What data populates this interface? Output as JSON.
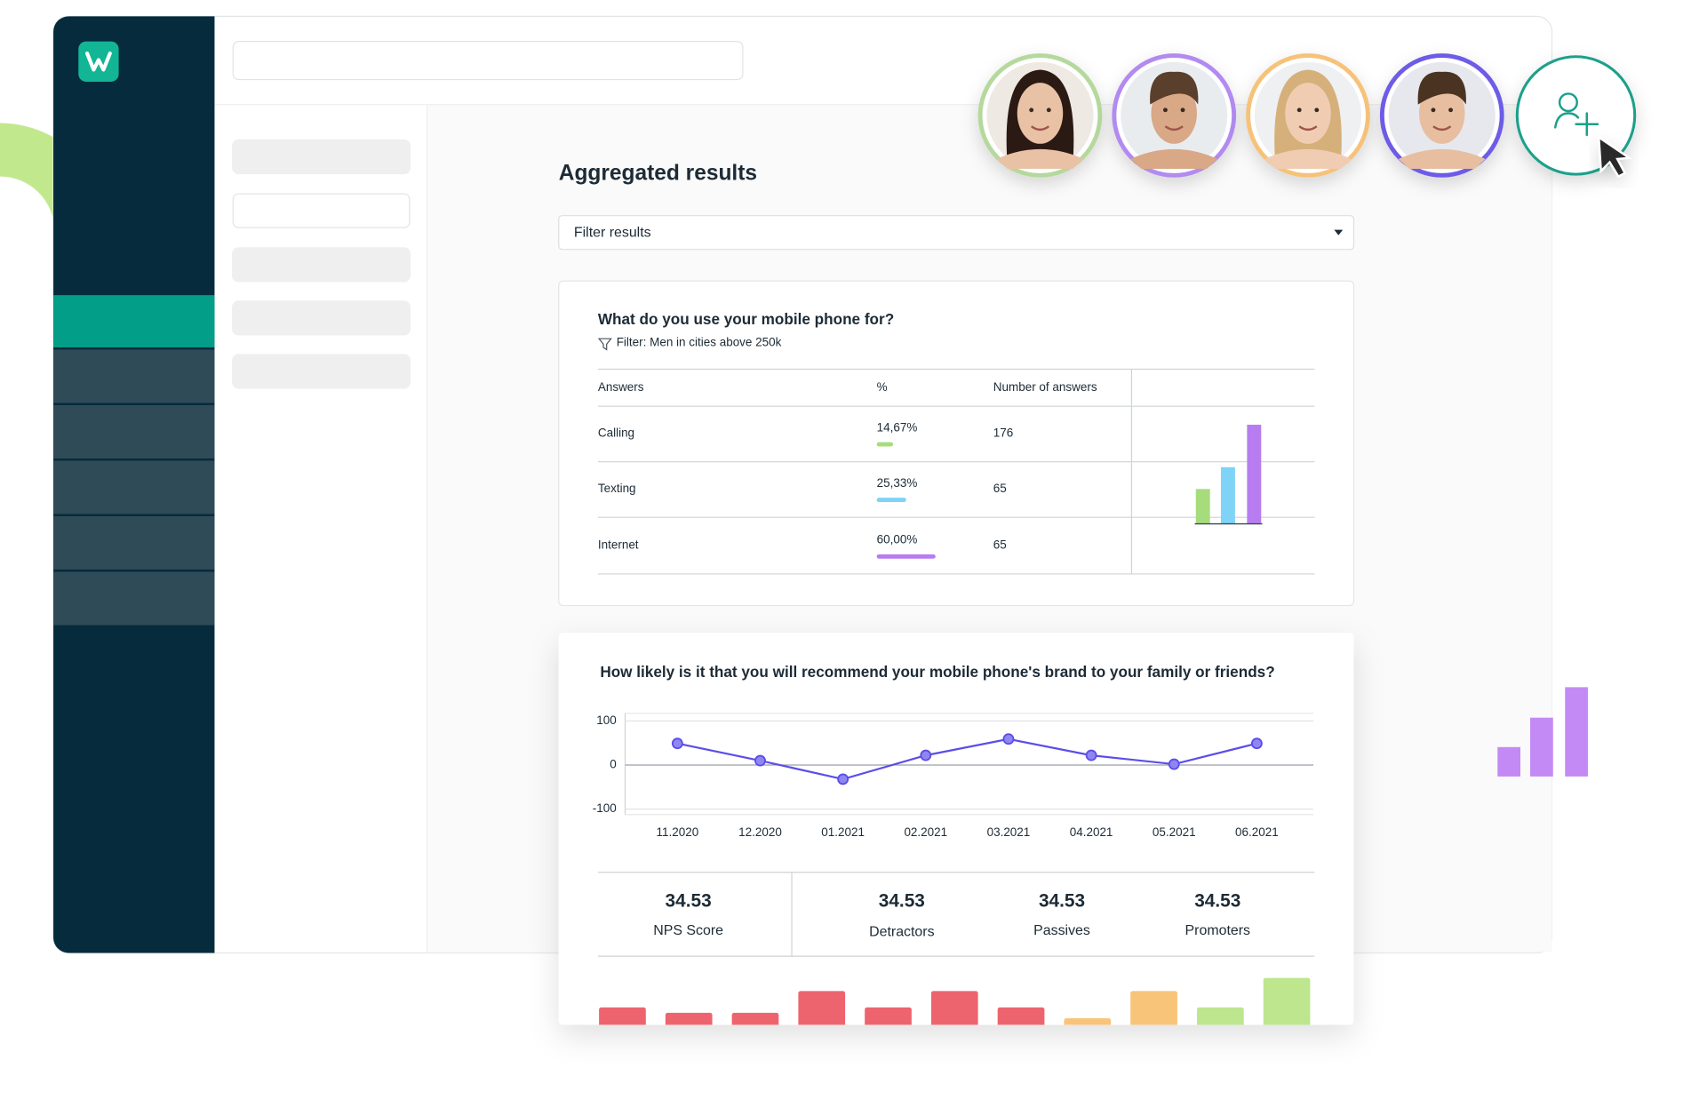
{
  "header": {
    "title": "Aggregated results",
    "filter_placeholder": "Filter results"
  },
  "question_card": {
    "question": "What do you use your mobile phone for?",
    "filter_note": "Filter: Men in cities above 250k",
    "table": {
      "columns": [
        "Answers",
        "%",
        "Number of answers"
      ],
      "rows": [
        [
          "Calling",
          "14,67%",
          176
        ],
        [
          "Texting",
          "25,33%",
          65
        ],
        [
          "Internet",
          "60,00%",
          65
        ]
      ]
    }
  },
  "chart_data": {
    "type": "line",
    "title": "How likely is it that you will recommend your mobile phone's brand to your family or friends?",
    "categories": [
      "11.2020",
      "12.2020",
      "01.2021",
      "02.2021",
      "03.2021",
      "04.2021",
      "05.2021",
      "06.2021"
    ],
    "values": [
      49,
      10,
      -32,
      22,
      59,
      22,
      2,
      49
    ],
    "color": "#5b4ee8",
    "ylim": [
      -100,
      100
    ],
    "yticks": [
      100,
      0,
      -100
    ],
    "grid": true
  },
  "nps": {
    "items": [
      {
        "value": 34.53,
        "label": "NPS Score",
        "color": "#0b2d3e"
      },
      {
        "value": 34.53,
        "label": "Detractors",
        "color": "#ee5f6b"
      },
      {
        "value": 34.53,
        "label": "Passives",
        "color": "#f7c06b"
      },
      {
        "value": 34.53,
        "label": "Promoters",
        "color": "#9ed36b"
      }
    ]
  }
}
